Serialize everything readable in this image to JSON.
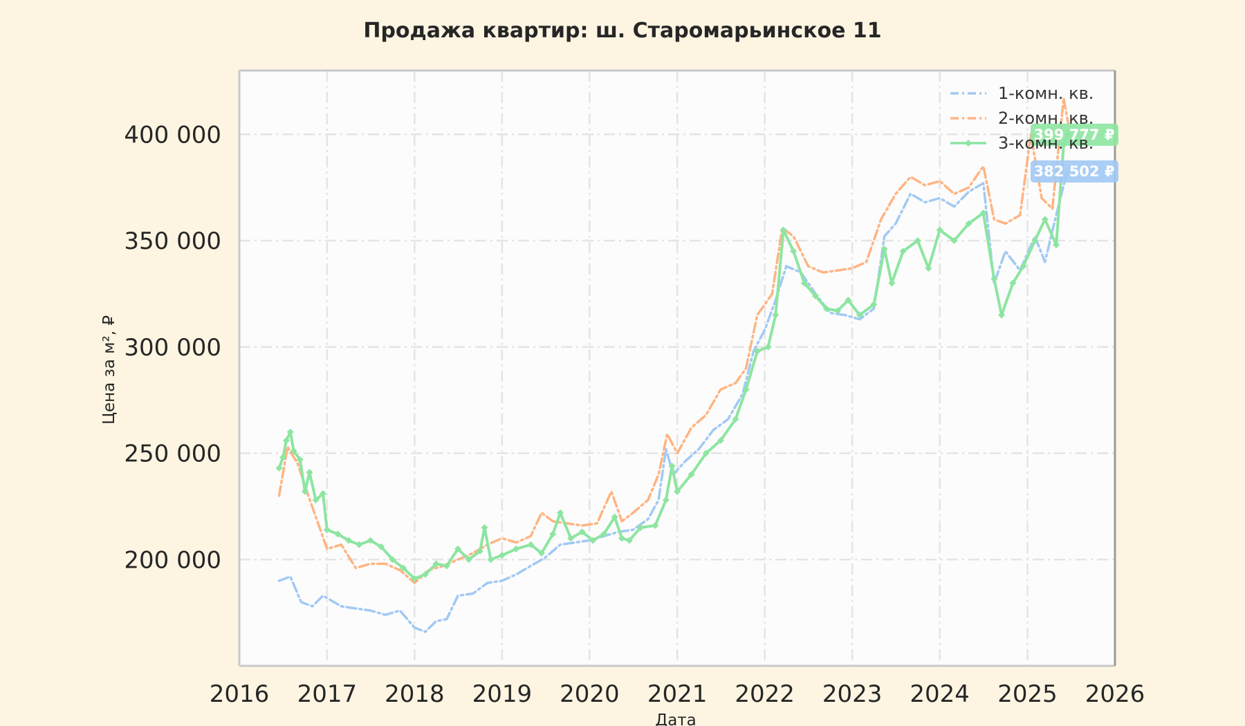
{
  "colors": {
    "background": "#fdf5e2",
    "plot_bg": "#fcfcfc",
    "grid": "#e4e4e4",
    "frame": "#c8c8c8",
    "text": "#262626"
  },
  "chart_data": {
    "type": "line",
    "title": "Продажа квартир: ш. Старомарьинское 11",
    "xlabel": "Дата",
    "ylabel": "Цена за м², ₽",
    "xlim": [
      "2016-01-01",
      "2026-01-01"
    ],
    "ylim": [
      150000,
      430000
    ],
    "x_ticks": [
      "2016",
      "2017",
      "2018",
      "2019",
      "2020",
      "2021",
      "2022",
      "2023",
      "2024",
      "2025",
      "2026"
    ],
    "y_ticks": [
      {
        "value": 200000,
        "label": "200 000"
      },
      {
        "value": 250000,
        "label": "250 000"
      },
      {
        "value": 300000,
        "label": "300 000"
      },
      {
        "value": 350000,
        "label": "350 000"
      },
      {
        "value": 400000,
        "label": "400 000"
      }
    ],
    "grid": true,
    "legend_position": "top-right",
    "series": [
      {
        "name": "1-комн. кв.",
        "color": "#a1c9f4",
        "style": "dashdot",
        "marker": "none",
        "last_value_label": "382 502 ₽",
        "last_value": 382502,
        "points": [
          [
            "2016-06-15",
            190000
          ],
          [
            "2016-08-01",
            192000
          ],
          [
            "2016-09-15",
            180000
          ],
          [
            "2016-11-01",
            178000
          ],
          [
            "2016-12-15",
            183000
          ],
          [
            "2017-03-01",
            178000
          ],
          [
            "2017-05-01",
            177000
          ],
          [
            "2017-07-01",
            176000
          ],
          [
            "2017-09-01",
            174000
          ],
          [
            "2017-11-01",
            176000
          ],
          [
            "2018-01-01",
            168000
          ],
          [
            "2018-02-15",
            166000
          ],
          [
            "2018-04-01",
            171000
          ],
          [
            "2018-05-15",
            172000
          ],
          [
            "2018-07-01",
            183000
          ],
          [
            "2018-09-01",
            184000
          ],
          [
            "2018-11-01",
            189000
          ],
          [
            "2019-01-01",
            190000
          ],
          [
            "2019-03-01",
            193000
          ],
          [
            "2019-05-01",
            197000
          ],
          [
            "2019-07-01",
            201000
          ],
          [
            "2019-09-01",
            207000
          ],
          [
            "2019-11-01",
            208000
          ],
          [
            "2020-01-01",
            209000
          ],
          [
            "2020-03-01",
            211000
          ],
          [
            "2020-05-01",
            213000
          ],
          [
            "2020-07-01",
            214000
          ],
          [
            "2020-09-01",
            219000
          ],
          [
            "2020-10-15",
            228000
          ],
          [
            "2020-11-15",
            252000
          ],
          [
            "2020-12-15",
            240000
          ],
          [
            "2021-02-01",
            246000
          ],
          [
            "2021-04-01",
            252000
          ],
          [
            "2021-06-01",
            261000
          ],
          [
            "2021-08-01",
            266000
          ],
          [
            "2021-10-01",
            278000
          ],
          [
            "2021-11-15",
            298000
          ],
          [
            "2022-01-01",
            308000
          ],
          [
            "2022-02-15",
            322000
          ],
          [
            "2022-04-01",
            338000
          ],
          [
            "2022-06-01",
            335000
          ],
          [
            "2022-08-01",
            325000
          ],
          [
            "2022-10-01",
            316000
          ],
          [
            "2022-12-01",
            315000
          ],
          [
            "2023-02-01",
            313000
          ],
          [
            "2023-04-01",
            318000
          ],
          [
            "2023-05-15",
            352000
          ],
          [
            "2023-07-01",
            358000
          ],
          [
            "2023-09-01",
            372000
          ],
          [
            "2023-11-01",
            368000
          ],
          [
            "2024-01-01",
            370000
          ],
          [
            "2024-03-01",
            366000
          ],
          [
            "2024-05-01",
            373000
          ],
          [
            "2024-07-01",
            377000
          ],
          [
            "2024-08-15",
            330000
          ],
          [
            "2024-10-01",
            345000
          ],
          [
            "2024-12-01",
            336000
          ],
          [
            "2025-02-01",
            352000
          ],
          [
            "2025-03-15",
            340000
          ],
          [
            "2025-05-01",
            362000
          ],
          [
            "2025-06-15",
            382502
          ]
        ]
      },
      {
        "name": "2-комн. кв.",
        "color": "#ffb482",
        "style": "dashdot",
        "marker": "none",
        "last_value_label": "",
        "last_value": 405000,
        "points": [
          [
            "2016-06-15",
            230000
          ],
          [
            "2016-07-20",
            253000
          ],
          [
            "2016-09-01",
            245000
          ],
          [
            "2016-10-15",
            230000
          ],
          [
            "2016-12-01",
            215000
          ],
          [
            "2017-01-01",
            205000
          ],
          [
            "2017-03-01",
            207000
          ],
          [
            "2017-05-01",
            196000
          ],
          [
            "2017-07-01",
            198000
          ],
          [
            "2017-09-01",
            198000
          ],
          [
            "2017-11-01",
            195000
          ],
          [
            "2018-01-01",
            189000
          ],
          [
            "2018-03-01",
            195000
          ],
          [
            "2018-05-01",
            197000
          ],
          [
            "2018-07-01",
            200000
          ],
          [
            "2018-09-01",
            203000
          ],
          [
            "2018-11-01",
            207000
          ],
          [
            "2019-01-01",
            210000
          ],
          [
            "2019-03-01",
            208000
          ],
          [
            "2019-05-01",
            211000
          ],
          [
            "2019-06-15",
            222000
          ],
          [
            "2019-08-01",
            218000
          ],
          [
            "2019-10-01",
            217000
          ],
          [
            "2019-12-01",
            216000
          ],
          [
            "2020-02-01",
            217000
          ],
          [
            "2020-04-01",
            232000
          ],
          [
            "2020-05-15",
            218000
          ],
          [
            "2020-07-01",
            222000
          ],
          [
            "2020-09-01",
            228000
          ],
          [
            "2020-10-15",
            240000
          ],
          [
            "2020-11-20",
            259000
          ],
          [
            "2021-01-01",
            250000
          ],
          [
            "2021-03-01",
            262000
          ],
          [
            "2021-05-01",
            268000
          ],
          [
            "2021-07-01",
            280000
          ],
          [
            "2021-09-01",
            283000
          ],
          [
            "2021-10-15",
            290000
          ],
          [
            "2021-12-01",
            315000
          ],
          [
            "2022-02-01",
            325000
          ],
          [
            "2022-03-15",
            356000
          ],
          [
            "2022-05-01",
            352000
          ],
          [
            "2022-07-01",
            338000
          ],
          [
            "2022-09-01",
            335000
          ],
          [
            "2022-11-01",
            336000
          ],
          [
            "2023-01-01",
            337000
          ],
          [
            "2023-03-01",
            340000
          ],
          [
            "2023-05-01",
            360000
          ],
          [
            "2023-07-01",
            372000
          ],
          [
            "2023-09-01",
            380000
          ],
          [
            "2023-11-01",
            376000
          ],
          [
            "2024-01-01",
            378000
          ],
          [
            "2024-03-01",
            372000
          ],
          [
            "2024-05-01",
            375000
          ],
          [
            "2024-07-01",
            385000
          ],
          [
            "2024-08-15",
            360000
          ],
          [
            "2024-10-01",
            358000
          ],
          [
            "2024-12-01",
            362000
          ],
          [
            "2025-01-15",
            400000
          ],
          [
            "2025-03-01",
            370000
          ],
          [
            "2025-04-15",
            365000
          ],
          [
            "2025-06-01",
            417000
          ],
          [
            "2025-06-20",
            405000
          ]
        ]
      },
      {
        "name": "3-комн. кв.",
        "color": "#8de5a1",
        "style": "solid",
        "marker": "diamond",
        "last_value_label": "399 777 ₽",
        "last_value": 399777,
        "points": [
          [
            "2016-06-15",
            243000
          ],
          [
            "2016-07-01",
            248000
          ],
          [
            "2016-07-15",
            256000
          ],
          [
            "2016-08-01",
            260000
          ],
          [
            "2016-08-15",
            251000
          ],
          [
            "2016-09-10",
            247000
          ],
          [
            "2016-10-01",
            232000
          ],
          [
            "2016-10-20",
            241000
          ],
          [
            "2016-11-15",
            228000
          ],
          [
            "2016-12-15",
            231000
          ],
          [
            "2017-01-01",
            214000
          ],
          [
            "2017-02-15",
            212000
          ],
          [
            "2017-04-01",
            209000
          ],
          [
            "2017-05-15",
            207000
          ],
          [
            "2017-07-01",
            209000
          ],
          [
            "2017-08-15",
            206000
          ],
          [
            "2017-10-01",
            200000
          ],
          [
            "2017-11-15",
            196000
          ],
          [
            "2018-01-01",
            191000
          ],
          [
            "2018-02-15",
            193000
          ],
          [
            "2018-04-01",
            198000
          ],
          [
            "2018-05-15",
            197000
          ],
          [
            "2018-07-01",
            205000
          ],
          [
            "2018-08-15",
            200000
          ],
          [
            "2018-10-01",
            204000
          ],
          [
            "2018-10-20",
            215000
          ],
          [
            "2018-11-15",
            200000
          ],
          [
            "2019-01-01",
            202000
          ],
          [
            "2019-03-01",
            205000
          ],
          [
            "2019-05-01",
            207000
          ],
          [
            "2019-06-15",
            203000
          ],
          [
            "2019-08-01",
            212000
          ],
          [
            "2019-09-01",
            222000
          ],
          [
            "2019-10-15",
            210000
          ],
          [
            "2019-12-01",
            213000
          ],
          [
            "2020-01-15",
            209000
          ],
          [
            "2020-03-01",
            212000
          ],
          [
            "2020-04-15",
            220000
          ],
          [
            "2020-05-15",
            210000
          ],
          [
            "2020-06-15",
            209000
          ],
          [
            "2020-08-01",
            215000
          ],
          [
            "2020-10-01",
            216000
          ],
          [
            "2020-11-15",
            228000
          ],
          [
            "2020-12-10",
            244000
          ],
          [
            "2021-01-01",
            232000
          ],
          [
            "2021-03-01",
            240000
          ],
          [
            "2021-05-01",
            250000
          ],
          [
            "2021-07-01",
            256000
          ],
          [
            "2021-09-01",
            266000
          ],
          [
            "2021-10-15",
            280000
          ],
          [
            "2021-12-01",
            298000
          ],
          [
            "2022-01-15",
            300000
          ],
          [
            "2022-02-15",
            315000
          ],
          [
            "2022-03-20",
            355000
          ],
          [
            "2022-05-01",
            345000
          ],
          [
            "2022-06-15",
            330000
          ],
          [
            "2022-08-01",
            324000
          ],
          [
            "2022-09-15",
            318000
          ],
          [
            "2022-11-01",
            317000
          ],
          [
            "2022-12-15",
            322000
          ],
          [
            "2023-02-01",
            315000
          ],
          [
            "2023-04-01",
            320000
          ],
          [
            "2023-05-15",
            346000
          ],
          [
            "2023-06-15",
            330000
          ],
          [
            "2023-08-01",
            345000
          ],
          [
            "2023-10-01",
            350000
          ],
          [
            "2023-11-15",
            337000
          ],
          [
            "2024-01-01",
            355000
          ],
          [
            "2024-03-01",
            350000
          ],
          [
            "2024-05-01",
            358000
          ],
          [
            "2024-07-01",
            363000
          ],
          [
            "2024-08-15",
            332000
          ],
          [
            "2024-09-15",
            315000
          ],
          [
            "2024-11-01",
            330000
          ],
          [
            "2024-12-15",
            338000
          ],
          [
            "2025-02-01",
            350000
          ],
          [
            "2025-03-15",
            360000
          ],
          [
            "2025-05-01",
            348000
          ],
          [
            "2025-06-01",
            395000
          ],
          [
            "2025-06-20",
            399777
          ]
        ]
      }
    ]
  }
}
